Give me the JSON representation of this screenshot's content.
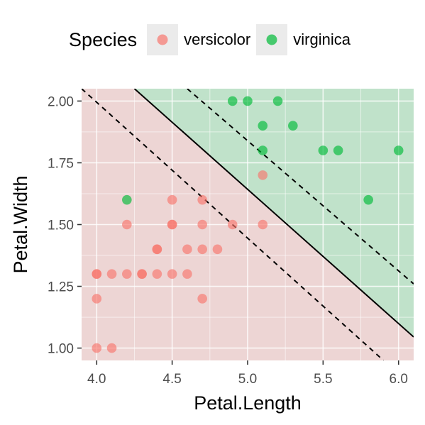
{
  "legend": {
    "title": "Species",
    "entries": [
      {
        "label": "versicolor",
        "color": "#F8766D"
      },
      {
        "label": "virginica",
        "color": "#00BA38"
      }
    ]
  },
  "chart_data": {
    "type": "scatter",
    "xlabel": "Petal.Length",
    "ylabel": "Petal.Width",
    "xlim": [
      3.9,
      6.1
    ],
    "ylim": [
      0.95,
      2.05
    ],
    "x_ticks": [
      4.0,
      4.5,
      5.0,
      5.5,
      6.0
    ],
    "x_tick_labels": [
      "4.0",
      "4.5",
      "5.0",
      "5.5",
      "6.0"
    ],
    "y_ticks": [
      1.0,
      1.25,
      1.5,
      1.75,
      2.0
    ],
    "y_tick_labels": [
      "1.00",
      "1.25",
      "1.50",
      "1.75",
      "2.00"
    ],
    "panel_background": "#ebebeb",
    "regions": [
      {
        "name": "versicolor",
        "color": "#F8766D",
        "side": "below"
      },
      {
        "name": "virginica",
        "color": "#00BA38",
        "side": "above"
      }
    ],
    "decision_boundary": {
      "point_a": [
        4.25,
        2.05
      ],
      "point_b": [
        6.1,
        1.045
      ]
    },
    "margins": [
      {
        "point_a": [
          3.9,
          2.05
        ],
        "point_b": [
          5.9,
          0.95
        ]
      },
      {
        "point_a": [
          4.6,
          2.05
        ],
        "point_b": [
          6.1,
          1.26
        ]
      }
    ],
    "series": [
      {
        "name": "versicolor",
        "color": "#F8766D",
        "points": [
          [
            4.0,
            1.0
          ],
          [
            4.1,
            1.0
          ],
          [
            4.0,
            1.2
          ],
          [
            4.7,
            1.2
          ],
          [
            4.0,
            1.3
          ],
          [
            4.1,
            1.3
          ],
          [
            4.2,
            1.3
          ],
          [
            4.3,
            1.3
          ],
          [
            4.4,
            1.3
          ],
          [
            4.5,
            1.3
          ],
          [
            4.6,
            1.3
          ],
          [
            4.0,
            1.3
          ],
          [
            4.3,
            1.3
          ],
          [
            4.4,
            1.4
          ],
          [
            4.6,
            1.4
          ],
          [
            4.7,
            1.4
          ],
          [
            4.8,
            1.4
          ],
          [
            4.4,
            1.4
          ],
          [
            4.2,
            1.5
          ],
          [
            4.5,
            1.5
          ],
          [
            4.7,
            1.5
          ],
          [
            4.9,
            1.5
          ],
          [
            5.1,
            1.5
          ],
          [
            4.5,
            1.5
          ],
          [
            4.5,
            1.6
          ],
          [
            4.7,
            1.6
          ],
          [
            5.1,
            1.7
          ]
        ]
      },
      {
        "name": "virginica",
        "color": "#00BA38",
        "points": [
          [
            4.2,
            1.6
          ],
          [
            5.8,
            1.6
          ],
          [
            5.1,
            1.8
          ],
          [
            5.5,
            1.8
          ],
          [
            5.6,
            1.8
          ],
          [
            6.0,
            1.8
          ],
          [
            5.1,
            1.9
          ],
          [
            5.3,
            1.9
          ],
          [
            4.9,
            2.0
          ],
          [
            5.0,
            2.0
          ],
          [
            5.2,
            2.0
          ]
        ]
      }
    ]
  }
}
